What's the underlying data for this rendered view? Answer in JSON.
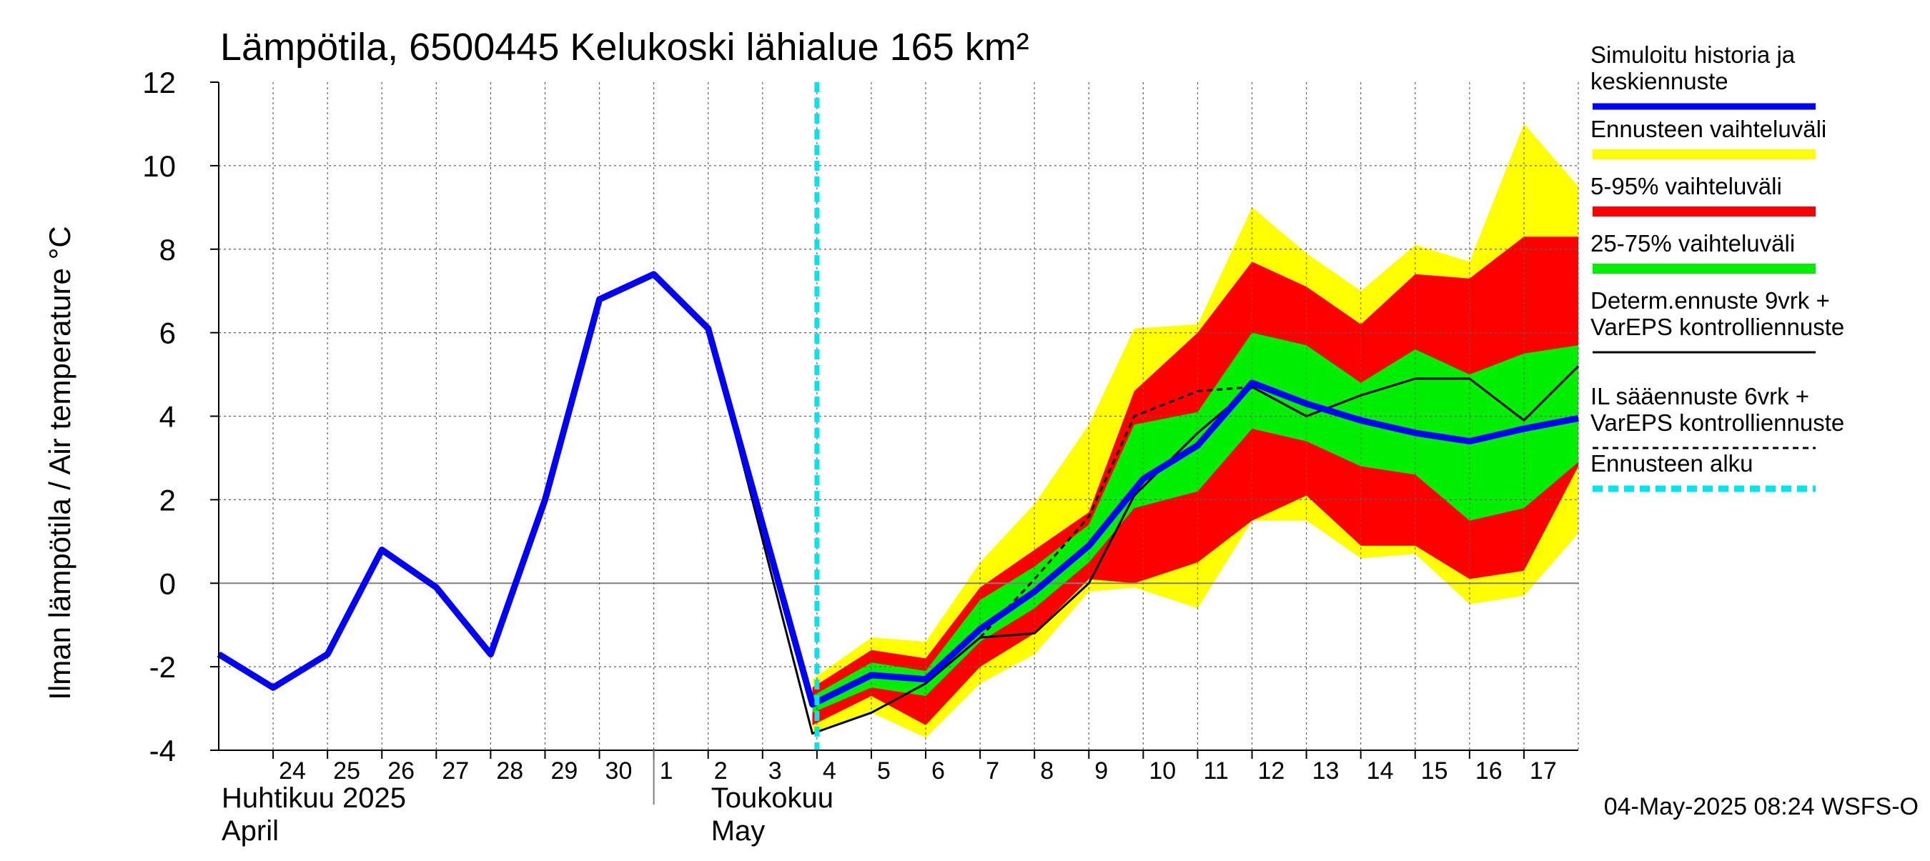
{
  "chart_data": {
    "type": "area",
    "title": "Lämpötila, 6500445 Kelukoski lähialue 165 km²",
    "ylabel": "Ilman lämpötila / Air temperature   °C",
    "ylim": [
      -4,
      12
    ],
    "yticks": [
      -4,
      -2,
      0,
      2,
      4,
      6,
      8,
      10,
      12
    ],
    "x_start": "2025-04-23T00:00",
    "x_end": "2025-05-18T00:00",
    "x_tick_labels": [
      {
        "date": "2025-04-24",
        "label": "24"
      },
      {
        "date": "2025-04-25",
        "label": "25"
      },
      {
        "date": "2025-04-26",
        "label": "26"
      },
      {
        "date": "2025-04-27",
        "label": "27"
      },
      {
        "date": "2025-04-28",
        "label": "28"
      },
      {
        "date": "2025-04-29",
        "label": "29"
      },
      {
        "date": "2025-04-30",
        "label": "30"
      },
      {
        "date": "2025-05-01",
        "label": "1"
      },
      {
        "date": "2025-05-02",
        "label": "2"
      },
      {
        "date": "2025-05-03",
        "label": "3"
      },
      {
        "date": "2025-05-04",
        "label": "4"
      },
      {
        "date": "2025-05-05",
        "label": "5"
      },
      {
        "date": "2025-05-06",
        "label": "6"
      },
      {
        "date": "2025-05-07",
        "label": "7"
      },
      {
        "date": "2025-05-08",
        "label": "8"
      },
      {
        "date": "2025-05-09",
        "label": "9"
      },
      {
        "date": "2025-05-10",
        "label": "10"
      },
      {
        "date": "2025-05-11",
        "label": "11"
      },
      {
        "date": "2025-05-12",
        "label": "12"
      },
      {
        "date": "2025-05-13",
        "label": "13"
      },
      {
        "date": "2025-05-14",
        "label": "14"
      },
      {
        "date": "2025-05-15",
        "label": "15"
      },
      {
        "date": "2025-05-16",
        "label": "16"
      },
      {
        "date": "2025-05-17",
        "label": "17"
      }
    ],
    "month_labels": [
      {
        "date": "2025-04-23",
        "fi": "Huhtikuu  2025",
        "en": "April"
      },
      {
        "date": "2025-05-02",
        "fi": "Toukokuu",
        "en": "May"
      }
    ],
    "month_separator": "2025-05-01",
    "forecast_start": "2025-05-04T00:00",
    "footer": "04-May-2025 08:24 WSFS-O",
    "colors": {
      "simulated": "#0000ff",
      "range_full": "#ffff00",
      "range_5_95": "#ff0000",
      "range_25_75": "#00ee00",
      "deterministic": "#000000",
      "il_forecast": "#000000",
      "forecast_start": "#00e5ee"
    },
    "series": [
      {
        "name": "Simuloitu historia ja keskiennuste",
        "style": "thick-blue",
        "points": [
          [
            "2025-04-23",
            -1.7
          ],
          [
            "2025-04-24",
            -2.5
          ],
          [
            "2025-04-25",
            -1.7
          ],
          [
            "2025-04-26",
            0.8
          ],
          [
            "2025-04-27",
            -0.1
          ],
          [
            "2025-04-28",
            -1.7
          ],
          [
            "2025-04-29",
            2.0
          ],
          [
            "2025-04-30",
            6.8
          ],
          [
            "2025-05-01",
            7.4
          ],
          [
            "2025-05-02",
            6.1
          ],
          [
            "2025-05-03T22:00",
            -2.9
          ],
          [
            "2025-05-05",
            -2.2
          ],
          [
            "2025-05-06",
            -2.3
          ],
          [
            "2025-05-07",
            -1.1
          ],
          [
            "2025-05-08",
            -0.2
          ],
          [
            "2025-05-09",
            0.9
          ],
          [
            "2025-05-10",
            2.5
          ],
          [
            "2025-05-11",
            3.3
          ],
          [
            "2025-05-12",
            4.8
          ],
          [
            "2025-05-13",
            4.3
          ],
          [
            "2025-05-14",
            3.9
          ],
          [
            "2025-05-15",
            3.6
          ],
          [
            "2025-05-16",
            3.4
          ],
          [
            "2025-05-17",
            3.7
          ],
          [
            "2025-05-18",
            3.95
          ]
        ]
      },
      {
        "name": "Ennusteen vaihteluväli",
        "style": "band-yellow",
        "points": [
          [
            "2025-05-03T22:00",
            -2.3,
            -3.6
          ],
          [
            "2025-05-05",
            -1.3,
            -3.1
          ],
          [
            "2025-05-06",
            -1.4,
            -3.7
          ],
          [
            "2025-05-07",
            0.5,
            -2.4
          ],
          [
            "2025-05-08",
            1.9,
            -1.7
          ],
          [
            "2025-05-09",
            3.8,
            -0.2
          ],
          [
            "2025-05-09T20:00",
            6.1,
            -0.1
          ],
          [
            "2025-05-11",
            6.2,
            -0.6
          ],
          [
            "2025-05-12",
            9.0,
            1.5
          ],
          [
            "2025-05-13",
            7.9,
            1.5
          ],
          [
            "2025-05-14",
            7.0,
            0.6
          ],
          [
            "2025-05-15",
            8.1,
            0.7
          ],
          [
            "2025-05-16",
            7.7,
            -0.5
          ],
          [
            "2025-05-17",
            11.0,
            -0.3
          ],
          [
            "2025-05-18",
            9.5,
            1.2
          ]
        ]
      },
      {
        "name": "5-95% vaihteluväli",
        "style": "band-red",
        "points": [
          [
            "2025-05-03T22:00",
            -2.5,
            -3.4
          ],
          [
            "2025-05-05",
            -1.6,
            -2.7
          ],
          [
            "2025-05-06",
            -1.8,
            -3.4
          ],
          [
            "2025-05-07",
            -0.1,
            -2.0
          ],
          [
            "2025-05-08",
            0.8,
            -1.2
          ],
          [
            "2025-05-09",
            1.7,
            0.1
          ],
          [
            "2025-05-09T20:00",
            4.6,
            0.0
          ],
          [
            "2025-05-11",
            6.0,
            0.5
          ],
          [
            "2025-05-12",
            7.7,
            1.5
          ],
          [
            "2025-05-13",
            7.1,
            2.1
          ],
          [
            "2025-05-14",
            6.2,
            0.9
          ],
          [
            "2025-05-15",
            7.4,
            0.9
          ],
          [
            "2025-05-16",
            7.3,
            0.1
          ],
          [
            "2025-05-17",
            8.3,
            0.3
          ],
          [
            "2025-05-18",
            8.3,
            2.8
          ]
        ]
      },
      {
        "name": "25-75% vaihteluväli",
        "style": "band-green",
        "points": [
          [
            "2025-05-03T22:00",
            -2.7,
            -3.1
          ],
          [
            "2025-05-05",
            -1.9,
            -2.5
          ],
          [
            "2025-05-06",
            -2.1,
            -2.7
          ],
          [
            "2025-05-07",
            -0.4,
            -1.4
          ],
          [
            "2025-05-08",
            0.4,
            -0.6
          ],
          [
            "2025-05-09",
            1.4,
            0.5
          ],
          [
            "2025-05-09T20:00",
            3.8,
            1.8
          ],
          [
            "2025-05-11",
            4.1,
            2.2
          ],
          [
            "2025-05-12",
            6.0,
            3.7
          ],
          [
            "2025-05-13",
            5.7,
            3.4
          ],
          [
            "2025-05-14",
            4.8,
            2.8
          ],
          [
            "2025-05-15",
            5.6,
            2.6
          ],
          [
            "2025-05-16",
            5.0,
            1.5
          ],
          [
            "2025-05-17",
            5.5,
            1.8
          ],
          [
            "2025-05-18",
            5.7,
            2.9
          ]
        ]
      },
      {
        "name": "Determ.ennuste 9vrk + VarEPS kontrolliennuste",
        "style": "thin-solid-black",
        "points": [
          [
            "2025-05-02",
            6.1
          ],
          [
            "2025-05-03T22:00",
            -3.6
          ],
          [
            "2025-05-05",
            -3.1
          ],
          [
            "2025-05-06",
            -2.4
          ],
          [
            "2025-05-07",
            -1.3
          ],
          [
            "2025-05-08",
            -1.2
          ],
          [
            "2025-05-09",
            0.0
          ],
          [
            "2025-05-09T20:00",
            2.1
          ],
          [
            "2025-05-11",
            3.6
          ],
          [
            "2025-05-12",
            4.7
          ],
          [
            "2025-05-13",
            4.0
          ],
          [
            "2025-05-14",
            4.5
          ],
          [
            "2025-05-15",
            4.9
          ],
          [
            "2025-05-16",
            4.9
          ],
          [
            "2025-05-17",
            3.9
          ],
          [
            "2025-05-18",
            5.2
          ]
        ]
      },
      {
        "name": "IL sääennuste 6vrk + VarEPS kontrolliennuste",
        "style": "thin-dashed-black",
        "points": [
          [
            "2025-05-07",
            -1.3
          ],
          [
            "2025-05-08",
            0.1
          ],
          [
            "2025-05-09",
            1.6
          ],
          [
            "2025-05-09T20:00",
            4.0
          ],
          [
            "2025-05-11",
            4.6
          ],
          [
            "2025-05-12",
            4.7
          ]
        ]
      }
    ],
    "legend": [
      {
        "text": "Simuloitu historia ja\nkeskiennuste",
        "swatch": "thick-blue"
      },
      {
        "text": "Ennusteen vaihteluväli",
        "swatch": "band-yellow"
      },
      {
        "text": "5-95% vaihteluväli",
        "swatch": "band-red"
      },
      {
        "text": "25-75% vaihteluväli",
        "swatch": "band-green"
      },
      {
        "text": "Determ.ennuste 9vrk +\nVarEPS kontrolliennuste",
        "swatch": "thin-solid-black"
      },
      {
        "text": "IL sääennuste 6vrk  +\n  VarEPS kontrolliennuste",
        "swatch": "thin-dashed-black"
      },
      {
        "text": "Ennusteen alku",
        "swatch": "dashed-cyan"
      }
    ],
    "legend_placement": "right",
    "grid": true
  }
}
